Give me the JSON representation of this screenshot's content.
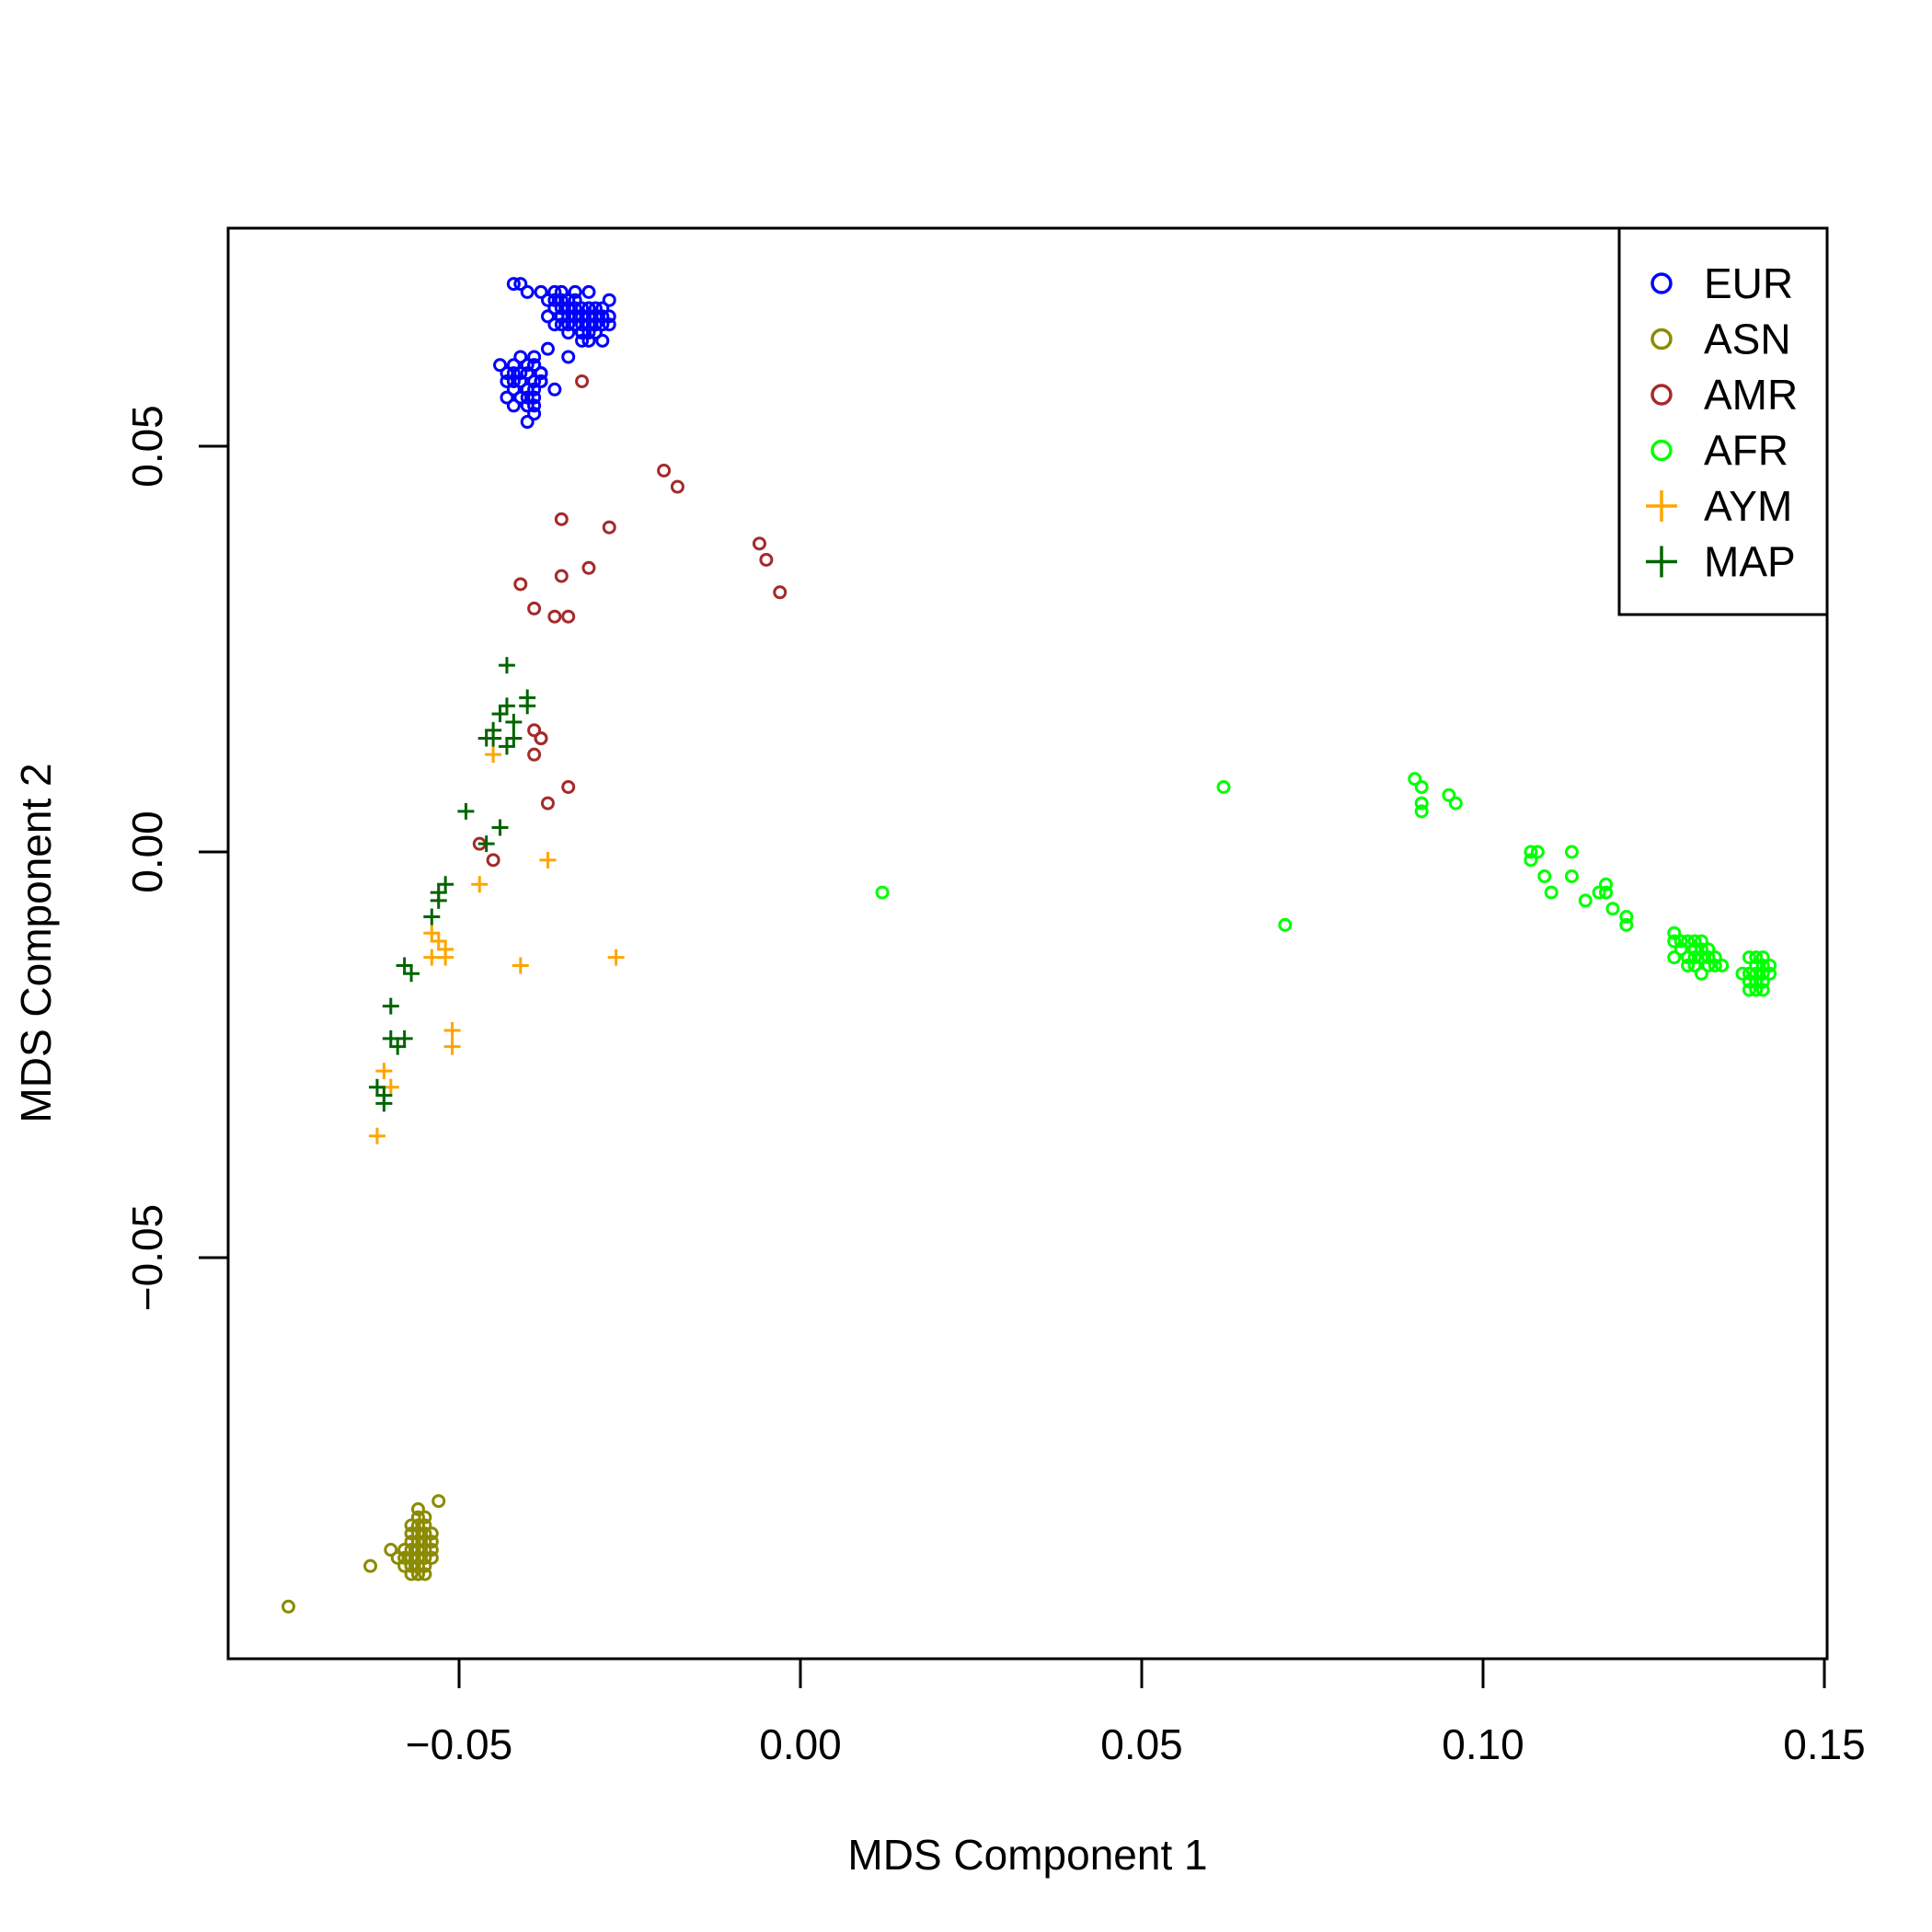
{
  "chart_data": {
    "type": "scatter",
    "xlabel": "MDS Component 1",
    "ylabel": "MDS Component 2",
    "xlim": [
      -0.084,
      0.151
    ],
    "ylim": [
      -0.1,
      0.077
    ],
    "xticks": [
      -0.05,
      0.0,
      0.05,
      0.1,
      0.15
    ],
    "xtick_labels": [
      "−0.05",
      "0.00",
      "0.05",
      "0.10",
      "0.15"
    ],
    "yticks": [
      -0.05,
      0.0,
      0.05
    ],
    "ytick_labels": [
      "−0.05",
      "0.00",
      "0.05"
    ],
    "grid": false,
    "legend_position": "top-right",
    "series": [
      {
        "name": "EUR",
        "color": "#0000FF",
        "marker": "circle",
        "x": [
          -0.042,
          -0.041,
          -0.04,
          -0.038,
          -0.036,
          -0.035,
          -0.034,
          -0.033,
          -0.037,
          -0.036,
          -0.035,
          -0.034,
          -0.033,
          -0.032,
          -0.031,
          -0.03,
          -0.029,
          -0.028,
          -0.036,
          -0.035,
          -0.034,
          -0.033,
          -0.032,
          -0.031,
          -0.03,
          -0.029,
          -0.037,
          -0.035,
          -0.033,
          -0.032,
          -0.031,
          -0.03,
          -0.029,
          -0.034,
          -0.032,
          -0.03,
          -0.028,
          -0.035,
          -0.031,
          -0.029,
          -0.036,
          -0.034,
          -0.033,
          -0.031,
          -0.03,
          -0.028,
          -0.033,
          -0.032,
          -0.031,
          -0.03,
          -0.036,
          -0.034,
          -0.032,
          -0.034,
          -0.031,
          -0.044,
          -0.043,
          -0.042,
          -0.041,
          -0.04,
          -0.039,
          -0.038,
          -0.043,
          -0.042,
          -0.041,
          -0.04,
          -0.039,
          -0.038,
          -0.042,
          -0.041,
          -0.04,
          -0.039,
          -0.038,
          -0.041,
          -0.04,
          -0.039,
          -0.038,
          -0.042,
          -0.04,
          -0.039,
          -0.038,
          -0.037,
          -0.039,
          -0.04,
          -0.042,
          -0.041,
          -0.043,
          -0.039,
          -0.036,
          -0.04,
          -0.039
        ],
        "y": [
          0.07,
          0.07,
          0.069,
          0.069,
          0.069,
          0.069,
          0.068,
          0.068,
          0.068,
          0.068,
          0.068,
          0.067,
          0.067,
          0.067,
          0.067,
          0.067,
          0.067,
          0.068,
          0.067,
          0.066,
          0.066,
          0.066,
          0.066,
          0.066,
          0.066,
          0.066,
          0.066,
          0.065,
          0.065,
          0.065,
          0.065,
          0.065,
          0.065,
          0.064,
          0.064,
          0.064,
          0.065,
          0.067,
          0.064,
          0.063,
          0.065,
          0.068,
          0.066,
          0.063,
          0.064,
          0.066,
          0.069,
          0.064,
          0.067,
          0.065,
          0.067,
          0.065,
          0.063,
          0.061,
          0.069,
          0.06,
          0.059,
          0.06,
          0.059,
          0.059,
          0.06,
          0.059,
          0.058,
          0.058,
          0.058,
          0.057,
          0.058,
          0.058,
          0.057,
          0.056,
          0.057,
          0.057,
          0.059,
          0.056,
          0.056,
          0.056,
          0.058,
          0.055,
          0.055,
          0.054,
          0.058,
          0.062,
          0.06,
          0.053,
          0.059,
          0.061,
          0.056,
          0.061,
          0.057,
          0.06,
          0.055
        ]
      },
      {
        "name": "ASN",
        "color": "#8B8B00",
        "marker": "circle",
        "x": [
          -0.075,
          -0.063,
          -0.06,
          -0.059,
          -0.058,
          -0.058,
          -0.057,
          -0.057,
          -0.057,
          -0.057,
          -0.057,
          -0.057,
          -0.056,
          -0.056,
          -0.056,
          -0.056,
          -0.056,
          -0.056,
          -0.056,
          -0.056,
          -0.056,
          -0.055,
          -0.055,
          -0.055,
          -0.055,
          -0.055,
          -0.055,
          -0.055,
          -0.054,
          -0.054,
          -0.054,
          -0.054,
          -0.057,
          -0.058,
          -0.056,
          -0.055,
          -0.056,
          -0.057,
          -0.053
        ],
        "y": [
          -0.093,
          -0.088,
          -0.086,
          -0.087,
          -0.086,
          -0.088,
          -0.084,
          -0.085,
          -0.086,
          -0.087,
          -0.088,
          -0.089,
          -0.082,
          -0.083,
          -0.084,
          -0.085,
          -0.086,
          -0.087,
          -0.088,
          -0.089,
          -0.081,
          -0.083,
          -0.084,
          -0.085,
          -0.086,
          -0.087,
          -0.088,
          -0.082,
          -0.084,
          -0.085,
          -0.086,
          -0.087,
          -0.083,
          -0.087,
          -0.089,
          -0.089,
          -0.085,
          -0.088,
          -0.08
        ]
      },
      {
        "name": "AMR",
        "color": "#A52A2A",
        "marker": "circle",
        "x": [
          -0.032,
          -0.02,
          -0.018,
          -0.035,
          -0.028,
          -0.006,
          -0.005,
          -0.003,
          -0.031,
          -0.035,
          -0.041,
          -0.039,
          -0.036,
          -0.034,
          -0.039,
          -0.038,
          -0.038,
          -0.039,
          -0.034,
          -0.037,
          -0.047,
          -0.045
        ],
        "y": [
          0.058,
          0.047,
          0.045,
          0.041,
          0.04,
          0.038,
          0.036,
          0.032,
          0.035,
          0.034,
          0.033,
          0.03,
          0.029,
          0.029,
          0.015,
          0.014,
          0.014,
          0.012,
          0.008,
          0.006,
          0.001,
          -0.001
        ]
      },
      {
        "name": "AFR",
        "color": "#00FF00",
        "marker": "circle",
        "x": [
          0.012,
          0.062,
          0.071,
          0.09,
          0.091,
          0.091,
          0.091,
          0.095,
          0.096,
          0.107,
          0.107,
          0.108,
          0.109,
          0.11,
          0.113,
          0.113,
          0.115,
          0.117,
          0.118,
          0.118,
          0.119,
          0.121,
          0.121,
          0.128,
          0.128,
          0.128,
          0.129,
          0.129,
          0.13,
          0.13,
          0.13,
          0.131,
          0.131,
          0.131,
          0.131,
          0.132,
          0.132,
          0.132,
          0.132,
          0.133,
          0.133,
          0.133,
          0.134,
          0.134,
          0.135,
          0.138,
          0.139,
          0.139,
          0.139,
          0.14,
          0.14,
          0.14,
          0.14,
          0.14,
          0.141,
          0.141,
          0.141,
          0.141,
          0.142,
          0.142,
          0.139,
          0.14,
          0.141
        ],
        "y": [
          -0.005,
          0.008,
          -0.009,
          0.009,
          0.008,
          0.006,
          0.005,
          0.007,
          0.006,
          0.0,
          -0.001,
          0.0,
          -0.003,
          -0.005,
          0.0,
          -0.003,
          -0.006,
          -0.005,
          -0.005,
          -0.004,
          -0.007,
          -0.009,
          -0.008,
          -0.01,
          -0.011,
          -0.013,
          -0.011,
          -0.012,
          -0.011,
          -0.013,
          -0.014,
          -0.011,
          -0.012,
          -0.013,
          -0.014,
          -0.011,
          -0.012,
          -0.013,
          -0.015,
          -0.012,
          -0.013,
          -0.014,
          -0.013,
          -0.014,
          -0.014,
          -0.015,
          -0.013,
          -0.015,
          -0.016,
          -0.013,
          -0.014,
          -0.015,
          -0.016,
          -0.017,
          -0.013,
          -0.014,
          -0.015,
          -0.016,
          -0.014,
          -0.015,
          -0.017,
          -0.016,
          -0.017
        ]
      },
      {
        "name": "AYM",
        "color": "#FFA500",
        "marker": "plus",
        "x": [
          -0.045,
          -0.037,
          -0.047,
          -0.054,
          -0.053,
          -0.052,
          -0.054,
          -0.052,
          -0.041,
          -0.027,
          -0.051,
          -0.051,
          -0.061,
          -0.06,
          -0.062
        ],
        "y": [
          0.012,
          -0.001,
          -0.004,
          -0.01,
          -0.011,
          -0.012,
          -0.013,
          -0.013,
          -0.014,
          -0.013,
          -0.022,
          -0.024,
          -0.027,
          -0.029,
          -0.035
        ]
      },
      {
        "name": "MAP",
        "color": "#006400",
        "marker": "plus",
        "x": [
          -0.043,
          -0.04,
          -0.04,
          -0.044,
          -0.043,
          -0.045,
          -0.042,
          -0.045,
          -0.046,
          -0.043,
          -0.042,
          -0.049,
          -0.044,
          -0.046,
          -0.053,
          -0.052,
          -0.053,
          -0.054,
          -0.058,
          -0.057,
          -0.06,
          -0.06,
          -0.059,
          -0.058,
          -0.061,
          -0.062,
          -0.061
        ],
        "y": [
          0.023,
          0.019,
          0.018,
          0.017,
          0.018,
          0.015,
          0.016,
          0.014,
          0.014,
          0.013,
          0.014,
          0.005,
          0.003,
          0.001,
          -0.005,
          -0.004,
          -0.006,
          -0.008,
          -0.014,
          -0.015,
          -0.019,
          -0.023,
          -0.024,
          -0.023,
          -0.03,
          -0.029,
          -0.031
        ]
      }
    ]
  }
}
